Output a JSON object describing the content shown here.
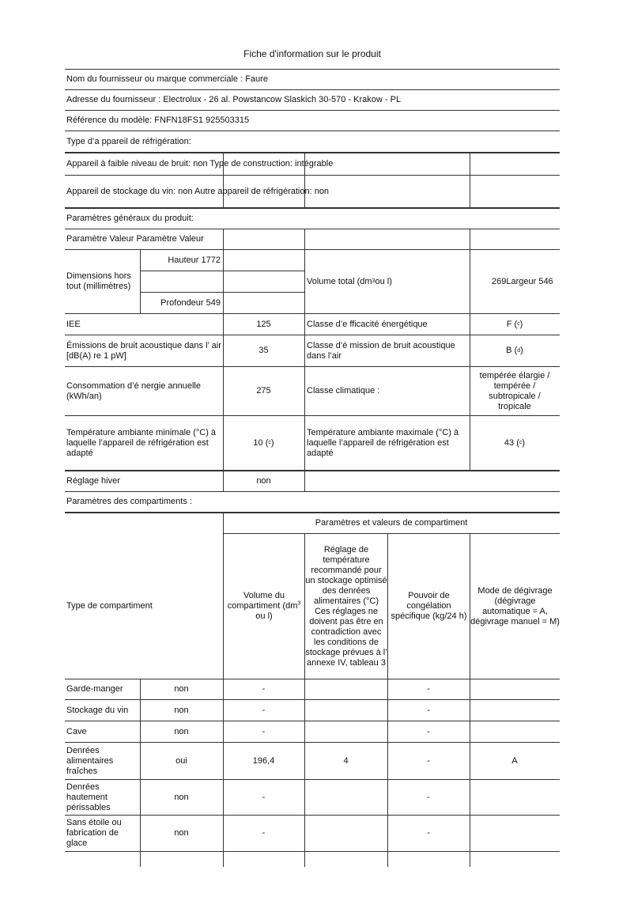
{
  "title": "Fiche d'information sur le produit",
  "supplier": "Nom du fournisseur ou marque commerciale : Faure",
  "address": "Adresse du fournisseur : Electrolux - 26 al. Powstancow Slaskich 30-570 - Krakow - PL",
  "model": "Référence du modèle: FNFN18FS1 925503315",
  "type_heading": "Type d’a ppareil de réfrigération:",
  "low_noise": "Appareil à faible niveau de bruit: non Type de construction: intégrable",
  "wine": "Appareil de stockage du vin: non Autre appareil de réfrigération: non",
  "general_heading": "Paramètres généraux du produit:",
  "param_header": "Paramètre Valeur Paramètre Valeur",
  "dimensions": {
    "label": "Dimensions hors tout (millimètres)",
    "height": "Hauteur 1772",
    "depth": "Profondeur 549"
  },
  "volume": {
    "label_pre": "Volume total (dm",
    "label_sup": "3",
    "label_post": "ou l)",
    "value": "269Largeur 546"
  },
  "iee": {
    "label": "IEE",
    "value": "125"
  },
  "energy_class": {
    "label": "Classe d’e fficacité énergétique",
    "value": "F (",
    "sup": "c",
    "close": ")"
  },
  "noise": {
    "label": "Émissions de bruit acoustique dans l’ air [dB(A) re 1 pW]",
    "value": "35"
  },
  "noise_class": {
    "label": "Classe d’é mission de bruit acoustique dans l’air",
    "value": "B (",
    "sup": "d",
    "close": ")"
  },
  "consumption": {
    "label": "Consommation d’é nergie annuelle (kWh/an)",
    "value": "275"
  },
  "climate": {
    "label": "Classe climatique :",
    "value": "tempérée élargie / tempérée / subtropicale / tropicale"
  },
  "temp_min": {
    "label": "Température ambiante minimale (°C) à laquelle l’appareil de réfrigération est adapté",
    "value": "10 (",
    "sup": "c",
    "close": ")"
  },
  "temp_max": {
    "label": "Température ambiante maximale (°C) à laquelle l’appareil de réfrigération est adapté",
    "value": "43 (",
    "sup": "c",
    "close": ")"
  },
  "winter": {
    "label": "Réglage hiver",
    "value": "non"
  },
  "comp_heading": "Paramètres des compartiments :",
  "comp_group": "Paramètres et valeurs de compartiment",
  "comp_cols": {
    "type": "Type de compartiment",
    "volume_pre": "Volume du compartiment (dm",
    "volume_sup": "3",
    "volume_post": " ou l)",
    "temp": "Réglage de température recommandé pour un stockage optimisé des denrées alimentaires (°C) Ces réglages ne doivent pas être en contradiction avec les conditions de stockage prévues à l’ annexe IV, tableau 3",
    "freeze": "Pouvoir de congélation spécifique (kg/24 h)",
    "defrost": "Mode de dégivrage (dégivrage automatique = A, dégivrage manuel = M)"
  },
  "rows": [
    {
      "type": "Garde-manger",
      "present": "non",
      "volume": "-",
      "temp": "",
      "freeze": "-",
      "defrost": ""
    },
    {
      "type": "Stockage du vin",
      "present": "non",
      "volume": "-",
      "temp": "",
      "freeze": "-",
      "defrost": ""
    },
    {
      "type": "Cave",
      "present": "non",
      "volume": "-",
      "temp": "",
      "freeze": "-",
      "defrost": ""
    },
    {
      "type": "Denrées alimentaires fraîches",
      "present": "oui",
      "volume": "196,4",
      "temp": "4",
      "freeze": "-",
      "defrost": "A"
    },
    {
      "type": "Denrées hautement périssables",
      "present": "non",
      "volume": "-",
      "temp": "",
      "freeze": "-",
      "defrost": ""
    },
    {
      "type": "Sans étoile ou fabrication de glace",
      "present": "non",
      "volume": "-",
      "temp": "",
      "freeze": "-",
      "defrost": ""
    }
  ]
}
